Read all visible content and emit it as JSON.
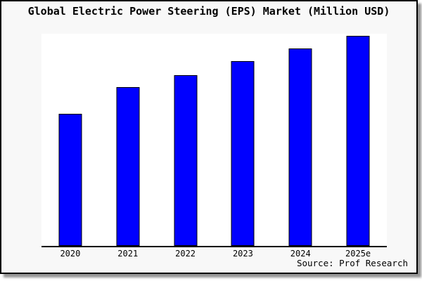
{
  "figure": {
    "title": "Global Electric Power Steering (EPS) Market (Million USD)",
    "source": "Source: Prof Research",
    "colors": {
      "background": "#f8f8f8",
      "plot_background": "#ffffff",
      "bar_fill": "#0000ff",
      "bar_border": "#000000",
      "axis": "#000000",
      "text": "#000000"
    }
  },
  "chart_data": {
    "type": "bar",
    "title": "Global Electric Power Steering (EPS) Market (Million USD)",
    "categories": [
      "2020",
      "2021",
      "2022",
      "2023",
      "2024",
      "2025e"
    ],
    "values": [
      62.8,
      75.5,
      81.2,
      87.9,
      93.9,
      100
    ],
    "values_note": "No y-axis or data labels shown in the chart; values are relative bar heights normalized so 2025e = 100.",
    "xlabel": "",
    "ylabel": "",
    "ylim": [
      0,
      101
    ],
    "grid": false,
    "legend": false,
    "annotation": "Source: Prof Research"
  }
}
